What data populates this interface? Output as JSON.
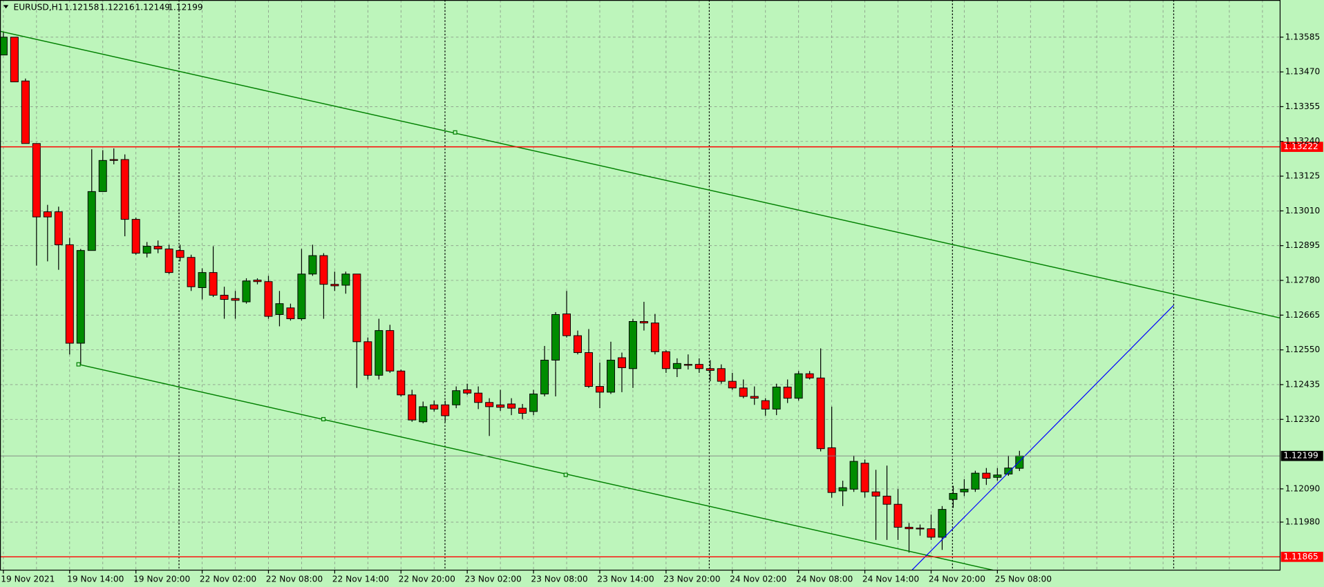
{
  "chart_data": {
    "type": "candlestick",
    "title": "EURUSD,H1",
    "categories": [
      "19 Nov 2021",
      null,
      null,
      null,
      null,
      null,
      "19 Nov 14:00",
      null,
      null,
      null,
      null,
      null,
      "19 Nov 20:00",
      null,
      null,
      null,
      null,
      null,
      "22 Nov 02:00",
      null,
      null,
      null,
      null,
      null,
      "22 Nov 08:00",
      null,
      null,
      null,
      null,
      null,
      "22 Nov 14:00",
      null,
      null,
      null,
      null,
      null,
      "22 Nov 20:00",
      null,
      null,
      null,
      null,
      null,
      "23 Nov 02:00",
      null,
      null,
      null,
      null,
      null,
      "23 Nov 08:00",
      null,
      null,
      null,
      null,
      null,
      "23 Nov 14:00",
      null,
      null,
      null,
      null,
      null,
      "23 Nov 20:00",
      null,
      null,
      null,
      null,
      null,
      "24 Nov 02:00",
      null,
      null,
      null,
      null,
      null,
      "24 Nov 08:00",
      null,
      null,
      null,
      null,
      null,
      "24 Nov 14:00",
      null,
      null,
      null,
      null,
      null,
      "24 Nov 20:00",
      null,
      null,
      null,
      null,
      null,
      "25 Nov 08:00",
      null,
      null
    ],
    "open": [
      1.13526,
      1.13585,
      1.1344,
      1.13233,
      1.13007,
      1.13007,
      1.12898,
      1.12572,
      1.12879,
      1.13074,
      1.1318,
      1.1318,
      1.12982,
      1.1287,
      1.12893,
      1.12884,
      1.12879,
      1.12856,
      1.12756,
      1.12806,
      1.12731,
      1.1272,
      1.12709,
      1.12781,
      1.12776,
      1.12667,
      1.12689,
      1.12653,
      1.12801,
      1.12862,
      1.12767,
      1.12764,
      1.12801,
      1.12577,
      1.12466,
      1.12614,
      1.1248,
      1.12401,
      1.12312,
      1.12368,
      1.12368,
      1.12368,
      1.12418,
      1.12407,
      1.12376,
      1.12368,
      1.12371,
      1.12357,
      1.12346,
      1.12404,
      1.12516,
      1.12669,
      1.12597,
      1.12541,
      1.12429,
      1.1241,
      1.12524,
      1.12488,
      1.12644,
      1.12639,
      1.12544,
      1.12488,
      1.12502,
      1.12502,
      1.12488,
      1.12488,
      1.12446,
      1.12424,
      1.12396,
      1.12382,
      1.12354,
      1.12427,
      1.1239,
      1.12471,
      1.12457,
      1.12226,
      1.12083,
      1.12089,
      1.12175,
      1.1208,
      1.12066,
      1.12039,
      1.11963,
      1.1196,
      1.11958,
      1.1193,
      1.12055,
      1.1208,
      1.12089,
      1.12142,
      1.12128,
      1.12139,
      1.12158
    ],
    "high": [
      1.13602,
      1.13585,
      1.13448,
      1.13233,
      1.1303,
      1.13024,
      1.12921,
      1.12884,
      1.13214,
      1.13211,
      1.13217,
      1.13197,
      1.12988,
      1.12907,
      1.12912,
      1.12898,
      1.12898,
      1.12865,
      1.1282,
      1.12893,
      1.12759,
      1.12745,
      1.12787,
      1.12787,
      1.12795,
      1.12745,
      1.12703,
      1.12884,
      1.12898,
      1.1287,
      1.12809,
      1.12809,
      1.12801,
      1.12591,
      1.12653,
      1.12633,
      1.12485,
      1.12418,
      1.12379,
      1.12382,
      1.12382,
      1.12429,
      1.12438,
      1.12429,
      1.1239,
      1.12418,
      1.1239,
      1.12371,
      1.12418,
      1.12563,
      1.12675,
      1.12745,
      1.12614,
      1.12619,
      1.12508,
      1.12577,
      1.12541,
      1.12653,
      1.12709,
      1.12669,
      1.12549,
      1.12522,
      1.12535,
      1.12522,
      1.12516,
      1.12502,
      1.12474,
      1.12452,
      1.12429,
      1.1239,
      1.12438,
      1.12452,
      1.1248,
      1.1248,
      1.12555,
      1.12362,
      1.12117,
      1.122,
      1.12187,
      1.12153,
      1.12167,
      1.12089,
      1.11977,
      1.11972,
      1.12005,
      1.12033,
      1.121,
      1.12122,
      1.1215,
      1.12159,
      1.12159,
      1.122,
      1.12216
    ],
    "low": [
      1.13526,
      1.13437,
      1.13233,
      1.12829,
      1.12843,
      1.12815,
      1.12535,
      1.12502,
      1.12879,
      1.13074,
      1.13164,
      1.12926,
      1.12865,
      1.12856,
      1.1287,
      1.12801,
      1.12843,
      1.12745,
      1.12717,
      1.12725,
      1.12653,
      1.12653,
      1.12703,
      1.12767,
      1.12653,
      1.12628,
      1.12647,
      1.12647,
      1.12795,
      1.12653,
      1.12745,
      1.12736,
      1.12424,
      1.12452,
      1.12452,
      1.12474,
      1.12396,
      1.12312,
      1.12307,
      1.12346,
      1.12312,
      1.12357,
      1.12401,
      1.12354,
      1.12265,
      1.12348,
      1.12334,
      1.12321,
      1.12334,
      1.12396,
      1.12396,
      1.12591,
      1.12535,
      1.12424,
      1.12357,
      1.12404,
      1.1241,
      1.12424,
      1.12614,
      1.12535,
      1.12474,
      1.1246,
      1.12485,
      1.12474,
      1.12446,
      1.12438,
      1.12418,
      1.1239,
      1.12368,
      1.12332,
      1.12334,
      1.12374,
      1.12382,
      1.12452,
      1.12214,
      1.12061,
      1.12033,
      1.1208,
      1.12061,
      1.11921,
      1.11921,
      1.11921,
      1.11879,
      1.11935,
      1.11921,
      1.11888,
      1.12027,
      1.12066,
      1.1208,
      1.12103,
      1.12117,
      1.12133,
      1.12149
    ],
    "close": [
      1.13585,
      1.13437,
      1.13233,
      1.1299,
      1.1299,
      1.12898,
      1.12572,
      1.12879,
      1.13074,
      1.13177,
      1.13177,
      1.12982,
      1.1287,
      1.12893,
      1.12884,
      1.12806,
      1.12856,
      1.12759,
      1.12806,
      1.12731,
      1.12717,
      1.12714,
      1.12778,
      1.12776,
      1.12661,
      1.12703,
      1.12653,
      1.12801,
      1.12862,
      1.12767,
      1.12762,
      1.12801,
      1.12577,
      1.12466,
      1.12614,
      1.1248,
      1.12401,
      1.12318,
      1.12362,
      1.12354,
      1.12332,
      1.12415,
      1.12407,
      1.12376,
      1.12362,
      1.1236,
      1.12357,
      1.1234,
      1.12404,
      1.12516,
      1.12667,
      1.12597,
      1.12541,
      1.12429,
      1.1241,
      1.12516,
      1.12491,
      1.12644,
      1.12639,
      1.12544,
      1.12488,
      1.12505,
      1.12499,
      1.12488,
      1.12482,
      1.12446,
      1.12424,
      1.12396,
      1.1239,
      1.12354,
      1.12427,
      1.1239,
      1.12471,
      1.12457,
      1.12223,
      1.12078,
      1.12094,
      1.12181,
      1.1208,
      1.12066,
      1.12039,
      1.11963,
      1.11958,
      1.11958,
      1.1193,
      1.12022,
      1.12075,
      1.12089,
      1.12142,
      1.12125,
      1.12136,
      1.12159,
      1.12199
    ],
    "up_color": "#008c00",
    "down_color": "#ff0000",
    "ylim": [
      1.11821,
      1.13708
    ],
    "yticks": [
      1.13585,
      {
        "value": 1.1347,
        "label": "1.13470"
      },
      1.13355,
      {
        "value": 1.1324,
        "label": "1.13240"
      },
      1.13125,
      {
        "value": 1.1301,
        "label": "1.13010"
      },
      1.12895,
      {
        "value": 1.1278,
        "label": "1.12780"
      },
      1.12665,
      {
        "value": 1.1255,
        "label": "1.12550"
      },
      1.12435,
      {
        "value": 1.1232,
        "label": "1.12320"
      },
      {
        "value": 1.1209,
        "label": "1.12090"
      },
      {
        "value": 1.1198,
        "label": "1.11980"
      }
    ],
    "grid": true,
    "levels": [
      {
        "value": 1.13222,
        "color": "#ff0000"
      },
      {
        "value": 1.11865,
        "color": "#ff0000"
      }
    ]
  }
}
